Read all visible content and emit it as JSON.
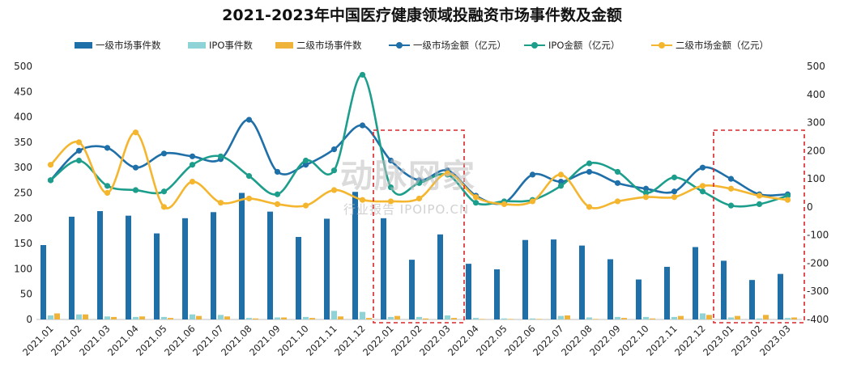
{
  "title": "2021-2023年中国医疗健康领域投融资市场事件数及金额",
  "watermark": {
    "main": "动脉网家",
    "sub": "行业报告 IPOIPO.CN"
  },
  "legend": [
    {
      "label": "一级市场事件数",
      "kind": "bar",
      "color": "#1f6fa8"
    },
    {
      "label": "IPO事件数",
      "kind": "bar",
      "color": "#8fd3d6"
    },
    {
      "label": "二级市场事件数",
      "kind": "bar",
      "color": "#f0b33a"
    },
    {
      "label": "一级市场金额（亿元）",
      "kind": "line",
      "color": "#1f6fa8"
    },
    {
      "label": "IPO金额（亿元）",
      "kind": "line",
      "color": "#1d9e8c"
    },
    {
      "label": "二级市场金额（亿元）",
      "kind": "line",
      "color": "#f5b62f"
    }
  ],
  "chart_data": {
    "type": "bar",
    "title": "2021-2023年中国医疗健康领域投融资市场事件数及金额",
    "categories": [
      "2021.01",
      "2021.02",
      "2021.03",
      "2021.04",
      "2021.05",
      "2021.06",
      "2021.07",
      "2021.08",
      "2021.09",
      "2021.10",
      "2021.11",
      "2021.12",
      "2022.01",
      "2022.02",
      "2022.03",
      "2022.04",
      "2022.05",
      "2022.06",
      "2022.07",
      "2022.08",
      "2022.09",
      "2022.10",
      "2022.11",
      "2022.12",
      "2023.01",
      "2023.02",
      "2023.03"
    ],
    "left_axis": {
      "min": 0,
      "max": 500,
      "step": 50,
      "ticks": [
        "0",
        "50",
        "100",
        "150",
        "200",
        "250",
        "300",
        "350",
        "400",
        "450",
        "500"
      ]
    },
    "right_axis": {
      "min": -400,
      "max": 500,
      "step": 100,
      "ticks": [
        "-400",
        "-300",
        "-200",
        "-100",
        "0",
        "100",
        "200",
        "300",
        "400",
        "500"
      ]
    },
    "grid": false,
    "legend_position": "top",
    "bar_series": [
      {
        "name": "一级市场事件数",
        "color": "#1f6fa8",
        "values": [
          147,
          203,
          214,
          205,
          170,
          200,
          212,
          250,
          213,
          163,
          199,
          252,
          200,
          118,
          168,
          110,
          99,
          157,
          158,
          146,
          119,
          79,
          104,
          143,
          116,
          78,
          90
        ]
      },
      {
        "name": "IPO事件数",
        "color": "#8fd3d6",
        "values": [
          8,
          10,
          6,
          5,
          5,
          10,
          9,
          3,
          4,
          5,
          17,
          15,
          5,
          5,
          8,
          3,
          2,
          2,
          7,
          4,
          5,
          5,
          5,
          12,
          4,
          2,
          3
        ]
      },
      {
        "name": "二级市场事件数",
        "color": "#f0b33a",
        "values": [
          12,
          10,
          5,
          6,
          3,
          7,
          6,
          2,
          4,
          3,
          6,
          3,
          7,
          2,
          3,
          1,
          1,
          1,
          8,
          1,
          3,
          2,
          7,
          9,
          7,
          9,
          4
        ]
      }
    ],
    "line_series": [
      {
        "name": "一级市场金额（亿元）",
        "color": "#1f6fa8",
        "values": [
          95,
          200,
          210,
          140,
          190,
          180,
          170,
          310,
          125,
          150,
          205,
          290,
          165,
          95,
          130,
          40,
          15,
          115,
          90,
          125,
          85,
          65,
          55,
          140,
          100,
          45,
          45
        ]
      },
      {
        "name": "IPO金额（亿元）",
        "color": "#1d9e8c",
        "values": [
          95,
          165,
          75,
          60,
          55,
          150,
          180,
          110,
          45,
          165,
          130,
          470,
          70,
          85,
          115,
          15,
          20,
          25,
          75,
          155,
          125,
          50,
          105,
          55,
          5,
          10,
          40
        ]
      },
      {
        "name": "二级市场金额（亿元）",
        "color": "#f5b62f",
        "values": [
          150,
          230,
          50,
          265,
          0,
          90,
          15,
          30,
          10,
          5,
          60,
          25,
          20,
          30,
          120,
          35,
          10,
          20,
          115,
          0,
          20,
          35,
          35,
          75,
          65,
          40,
          25
        ]
      }
    ],
    "highlight_boxes": [
      {
        "from": "2022.01",
        "to": "2022.03"
      },
      {
        "from": "2023.01",
        "to": "2023.03"
      }
    ]
  }
}
